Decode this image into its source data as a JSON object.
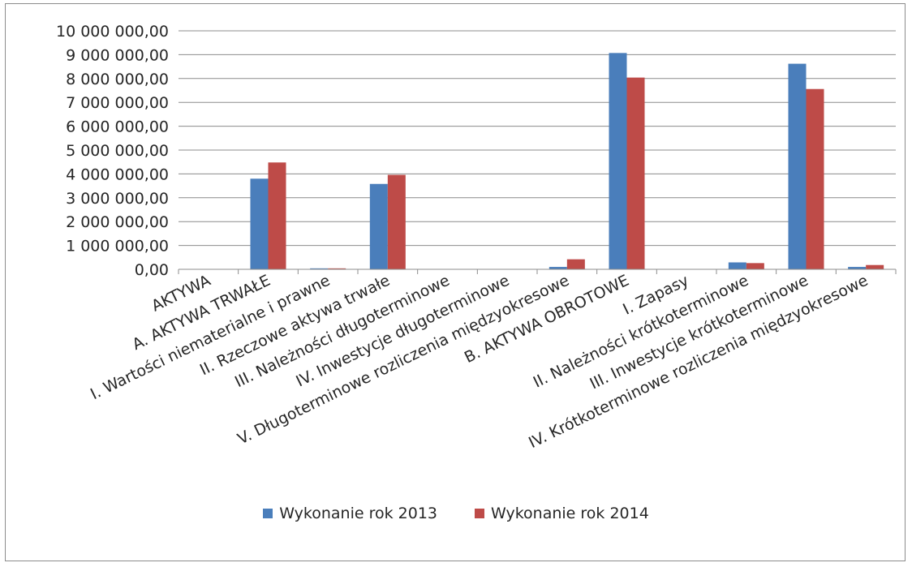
{
  "chart_data": {
    "type": "bar",
    "categories": [
      "AKTYWA",
      "A. AKTYWA TRWAŁE",
      "I. Wartości niematerialne i prawne",
      "II. Rzeczowe aktywa trwałe",
      "III. Należności długoterminowe",
      "IV. Inwestycje długoterminowe",
      "V. Długoterminowe rozliczenia międzyokresowe",
      "B. AKTYWA OBROTOWE",
      "I. Zapasy",
      "II. Należności krótkoterminowe",
      "III. Inwestycje krótkoterminowe",
      "IV. Krótkoterminowe rozliczenia międzyokresowe"
    ],
    "series": [
      {
        "name": "Wykonanie rok 2013",
        "color": "#4a7ebb",
        "values": [
          0,
          3800000,
          40000,
          3580000,
          0,
          0,
          100000,
          9070000,
          0,
          290000,
          8620000,
          100000
        ]
      },
      {
        "name": "Wykonanie rok 2014",
        "color": "#be4b48",
        "values": [
          0,
          4480000,
          40000,
          3960000,
          0,
          0,
          420000,
          8040000,
          0,
          260000,
          7560000,
          180000
        ]
      }
    ],
    "y_ticks": [
      "0,00",
      "1 000 000,00",
      "2 000 000,00",
      "3 000 000,00",
      "4 000 000,00",
      "5 000 000,00",
      "6 000 000,00",
      "7 000 000,00",
      "8 000 000,00",
      "9 000 000,00",
      "10 000 000,00"
    ],
    "ylim": [
      0,
      10000000
    ],
    "grid": true,
    "legend_position": "bottom"
  }
}
